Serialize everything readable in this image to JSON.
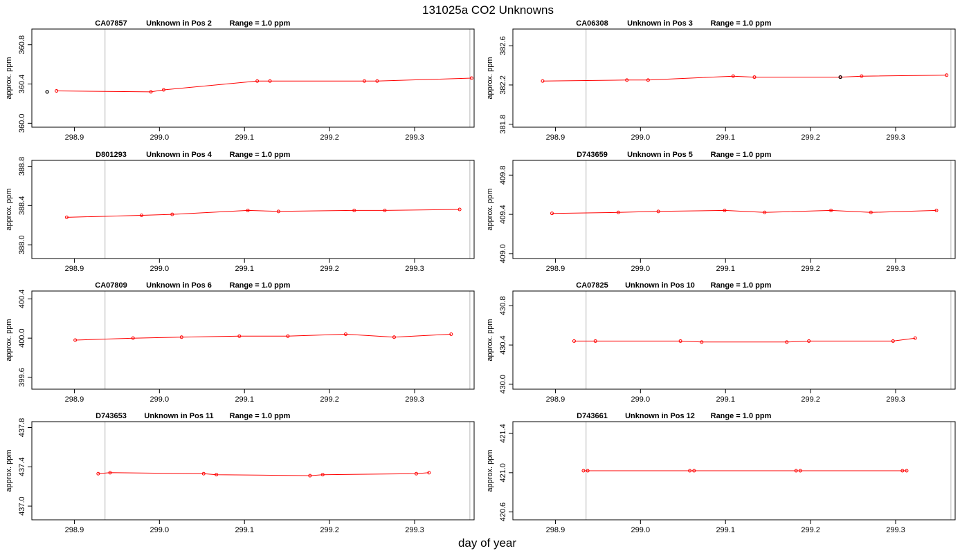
{
  "figure": {
    "title": "131025a  CO2 Unknowns",
    "xlabel": "day of year"
  },
  "colors": {
    "series": "#ff0000",
    "flagged_point": "#000000",
    "guide_line": "#c8c8c8",
    "axis": "#000000"
  },
  "chart_data": [
    {
      "type": "line",
      "tank": "CA07857",
      "position": "Unknown in Pos 2",
      "range": "Range = 1.0 ppm",
      "ylabel": "approx. ppm",
      "xlim": [
        298.85,
        299.37
      ],
      "xticks": [
        298.9,
        299.0,
        299.1,
        299.2,
        299.3
      ],
      "ylim": [
        359.96,
        360.96
      ],
      "yticks": [
        360.0,
        360.4,
        360.8
      ],
      "guide_x": [
        298.936,
        299.365
      ],
      "x": [
        298.879,
        298.99,
        299.005,
        299.115,
        299.13,
        299.241,
        299.256,
        299.367
      ],
      "y": [
        360.33,
        360.32,
        360.34,
        360.43,
        360.43,
        360.43,
        360.43,
        360.46
      ],
      "flagged": [
        {
          "x": 298.868,
          "y": 360.32
        }
      ]
    },
    {
      "type": "line",
      "tank": "CA06308",
      "position": "Unknown in Pos 3",
      "range": "Range = 1.0 ppm",
      "ylabel": "approx. ppm",
      "xlim": [
        298.85,
        299.37
      ],
      "xticks": [
        298.9,
        299.0,
        299.1,
        299.2,
        299.3
      ],
      "ylim": [
        381.77,
        382.77
      ],
      "yticks": [
        381.8,
        382.2,
        382.6
      ],
      "guide_x": [
        298.936,
        299.365
      ],
      "x": [
        298.885,
        298.984,
        299.009,
        299.109,
        299.134,
        299.235,
        299.26,
        299.36
      ],
      "y": [
        382.24,
        382.25,
        382.25,
        382.29,
        382.28,
        382.28,
        382.29,
        382.3
      ],
      "flagged": [
        {
          "x": 299.235,
          "y": 382.28
        }
      ]
    },
    {
      "type": "line",
      "tank": "D801293",
      "position": "Unknown in Pos 4",
      "range": "Range = 1.0 ppm",
      "ylabel": "approx. ppm",
      "xlim": [
        298.85,
        299.37
      ],
      "xticks": [
        298.9,
        299.0,
        299.1,
        299.2,
        299.3
      ],
      "ylim": [
        387.86,
        388.86
      ],
      "yticks": [
        388.0,
        388.4,
        388.8
      ],
      "guide_x": [
        298.936,
        299.365
      ],
      "x": [
        298.891,
        298.979,
        299.015,
        299.104,
        299.14,
        299.229,
        299.265,
        299.353
      ],
      "y": [
        388.28,
        388.3,
        388.31,
        388.35,
        388.34,
        388.35,
        388.35,
        388.36
      ],
      "flagged": []
    },
    {
      "type": "line",
      "tank": "D743659",
      "position": "Unknown in Pos 5",
      "range": "Range = 1.0 ppm",
      "ylabel": "approx. ppm",
      "xlim": [
        298.85,
        299.37
      ],
      "xticks": [
        298.9,
        299.0,
        299.1,
        299.2,
        299.3
      ],
      "ylim": [
        408.95,
        409.95
      ],
      "yticks": [
        409.0,
        409.4,
        409.8
      ],
      "guide_x": [
        298.936,
        299.365
      ],
      "x": [
        298.896,
        298.974,
        299.021,
        299.099,
        299.146,
        299.224,
        299.271,
        299.348
      ],
      "y": [
        409.41,
        409.42,
        409.43,
        409.44,
        409.42,
        409.44,
        409.42,
        409.44
      ],
      "flagged": []
    },
    {
      "type": "line",
      "tank": "CA07809",
      "position": "Unknown in Pos 6",
      "range": "Range = 1.0 ppm",
      "ylabel": "approx. ppm",
      "xlim": [
        298.85,
        299.37
      ],
      "xticks": [
        298.9,
        299.0,
        299.1,
        299.2,
        299.3
      ],
      "ylim": [
        399.48,
        400.48
      ],
      "yticks": [
        399.6,
        400.0,
        400.4
      ],
      "guide_x": [
        298.936,
        299.365
      ],
      "x": [
        298.901,
        298.969,
        299.026,
        299.094,
        299.151,
        299.219,
        299.276,
        299.343
      ],
      "y": [
        399.98,
        400.0,
        400.01,
        400.02,
        400.02,
        400.04,
        400.01,
        400.04
      ],
      "flagged": []
    },
    {
      "type": "line",
      "tank": "CA07825",
      "position": "Unknown in Pos 10",
      "range": "Range = 1.0 ppm",
      "ylabel": "approx. ppm",
      "xlim": [
        298.85,
        299.37
      ],
      "xticks": [
        298.9,
        299.0,
        299.1,
        299.2,
        299.3
      ],
      "ylim": [
        429.95,
        430.95
      ],
      "yticks": [
        430.0,
        430.4,
        430.8
      ],
      "guide_x": [
        298.936,
        299.365
      ],
      "x": [
        298.922,
        298.947,
        299.047,
        299.072,
        299.172,
        299.198,
        299.297,
        299.323
      ],
      "y": [
        430.44,
        430.44,
        430.44,
        430.43,
        430.43,
        430.44,
        430.44,
        430.47
      ],
      "flagged": []
    },
    {
      "type": "line",
      "tank": "D743653",
      "position": "Unknown in Pos 11",
      "range": "Range = 1.0 ppm",
      "ylabel": "approx. ppm",
      "xlim": [
        298.85,
        299.37
      ],
      "xticks": [
        298.9,
        299.0,
        299.1,
        299.2,
        299.3
      ],
      "ylim": [
        436.86,
        437.86
      ],
      "yticks": [
        437.0,
        437.4,
        437.8
      ],
      "guide_x": [
        298.936,
        299.365
      ],
      "x": [
        298.928,
        298.942,
        299.052,
        299.067,
        299.177,
        299.192,
        299.302,
        299.317
      ],
      "y": [
        437.33,
        437.34,
        437.33,
        437.32,
        437.31,
        437.32,
        437.33,
        437.34
      ],
      "flagged": []
    },
    {
      "type": "line",
      "tank": "D743661",
      "position": "Unknown in Pos 12",
      "range": "Range = 1.0 ppm",
      "ylabel": "approx. ppm",
      "xlim": [
        298.85,
        299.37
      ],
      "xticks": [
        298.9,
        299.0,
        299.1,
        299.2,
        299.3
      ],
      "ylim": [
        420.52,
        421.52
      ],
      "yticks": [
        420.6,
        421.0,
        421.4
      ],
      "guide_x": [
        298.936,
        299.365
      ],
      "x": [
        298.933,
        298.938,
        299.058,
        299.063,
        299.183,
        299.188,
        299.308,
        299.313
      ],
      "y": [
        421.02,
        421.02,
        421.02,
        421.02,
        421.02,
        421.02,
        421.02,
        421.02
      ],
      "flagged": []
    }
  ]
}
